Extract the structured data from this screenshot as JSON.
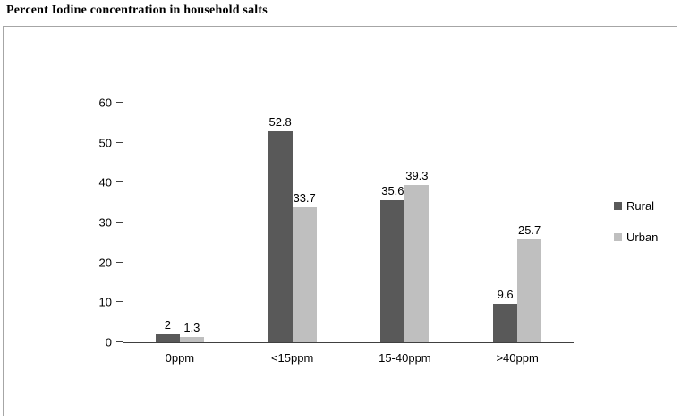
{
  "chart_data": {
    "type": "bar",
    "title": "Percent Iodine concentration in household salts",
    "categories": [
      "0ppm",
      "<15ppm",
      "15-40ppm",
      ">40ppm"
    ],
    "series": [
      {
        "name": "Rural",
        "color": "#595959",
        "values": [
          2,
          52.8,
          35.6,
          9.6
        ]
      },
      {
        "name": "Urban",
        "color": "#bfbfbf",
        "values": [
          1.3,
          33.7,
          39.3,
          25.7
        ]
      }
    ],
    "ylim": [
      0,
      60
    ],
    "ytick_step": 10,
    "grid": false,
    "legend_position": "right",
    "xlabel": "",
    "ylabel": ""
  }
}
